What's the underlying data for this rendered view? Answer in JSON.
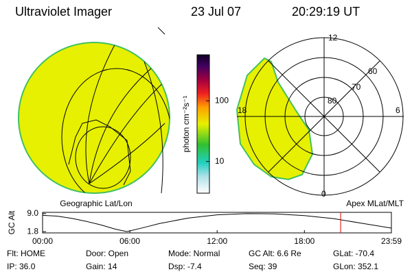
{
  "header": {
    "title": "Ultraviolet Imager",
    "date": "23 Jul 07",
    "time": "20:29:19 UT"
  },
  "colorbar": {
    "label": "photon cm⁻²s⁻¹",
    "scale": "log",
    "ylim": [
      3,
      575
    ],
    "yticks": [
      10,
      100
    ]
  },
  "geo_map": {
    "label": "Geographic Lat/Lon"
  },
  "polar_map": {
    "label": "Apex MLat/MLT",
    "mlt_labels": [
      "12",
      "18",
      "6",
      "0"
    ],
    "lat_labels": [
      "60",
      "70",
      "80"
    ]
  },
  "chart_data": {
    "type": "line",
    "ylabel": "GC Alt",
    "x": [
      0,
      1,
      2,
      3,
      4,
      5,
      5.8,
      7,
      8,
      10,
      12,
      14,
      16,
      18,
      20,
      22,
      23.98
    ],
    "values": [
      8.3,
      8.0,
      7.1,
      5.9,
      4.5,
      2.8,
      1.8,
      3.5,
      5.0,
      7.2,
      8.5,
      9.0,
      8.9,
      8.2,
      7.0,
      5.1,
      3.2
    ],
    "color": "#000000",
    "marker_x": 20.49,
    "marker_color": "#e00000",
    "xlim": [
      0,
      23.98
    ],
    "xticks": [
      {
        "value": 0,
        "label": "00:00"
      },
      {
        "value": 6,
        "label": "06:00"
      },
      {
        "value": 12,
        "label": "12:00"
      },
      {
        "value": 18,
        "label": "18:00"
      },
      {
        "value": 23.98,
        "label": "23:59"
      }
    ],
    "ylim": [
      1.3,
      9.5
    ],
    "yticks": [
      {
        "value": 9,
        "label": "9.0"
      },
      1.8
    ]
  },
  "footer": {
    "fields": [
      "Flt: HOME",
      "IP: 36.0",
      "Door: Open",
      "Gain: 14",
      "Mode: Normal",
      "Dsp:   -7.4",
      "GC Alt: 6.6 Re",
      "Seq: 39",
      "GLat: -70.4",
      "GLon: 352.1"
    ]
  }
}
